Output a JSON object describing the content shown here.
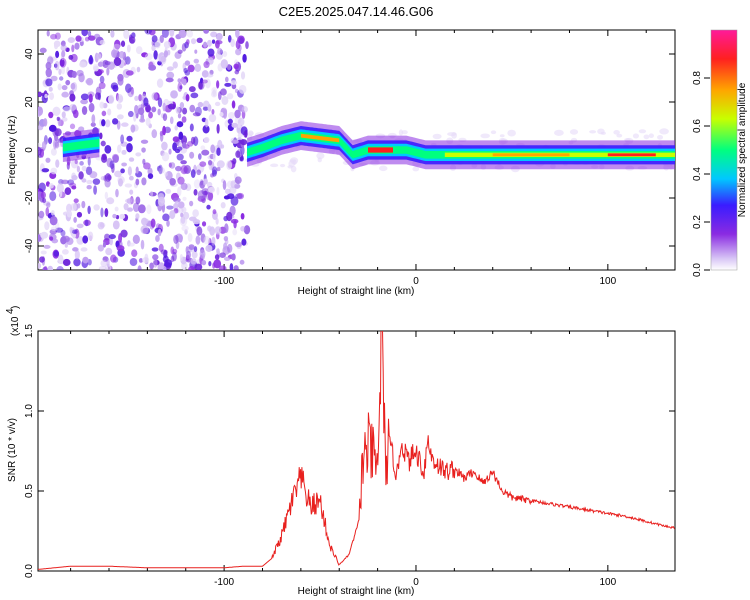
{
  "title": "C2E5.2025.047.14.46.G06",
  "chart_data": [
    {
      "type": "heatmap",
      "xlabel": "Height of straight line (km)",
      "ylabel": "Frequency (Hz)",
      "xlim": [
        -197,
        135
      ],
      "ylim": [
        -50,
        50
      ],
      "x_ticks": [
        -100,
        0,
        100
      ],
      "x_tick_labels": [
        "-100",
        "0",
        "100"
      ],
      "y_ticks": [
        -40,
        -20,
        0,
        20,
        40
      ],
      "y_tick_labels": [
        "-40",
        "-20",
        "0",
        "20",
        "40"
      ],
      "colorbar": {
        "label": "Normalized spectral amplitude",
        "range": [
          0,
          1
        ],
        "ticks": [
          0.0,
          0.2,
          0.4,
          0.6,
          0.8
        ],
        "tick_labels": [
          "0.0",
          "0.2",
          "0.4",
          "0.6",
          "0.8"
        ],
        "colors": [
          "#ffffff",
          "#d6c2f5",
          "#8a2be2",
          "#3a1cff",
          "#00c8ff",
          "#00ff7f",
          "#c8ff00",
          "#ffa500",
          "#ff2020",
          "#ff1a9a"
        ]
      },
      "ridge": [
        {
          "x": -184,
          "y": 1
        },
        {
          "x": -175,
          "y": 2
        },
        {
          "x": -165,
          "y": 3
        },
        {
          "x": -88,
          "y": -1
        },
        {
          "x": -80,
          "y": 1
        },
        {
          "x": -70,
          "y": 4
        },
        {
          "x": -60,
          "y": 6
        },
        {
          "x": -50,
          "y": 5
        },
        {
          "x": -40,
          "y": 4
        },
        {
          "x": -33,
          "y": -2
        },
        {
          "x": -25,
          "y": 0
        },
        {
          "x": -15,
          "y": 0
        },
        {
          "x": -5,
          "y": 0
        },
        {
          "x": 5,
          "y": -2
        },
        {
          "x": 15,
          "y": -2
        },
        {
          "x": 40,
          "y": -2
        },
        {
          "x": 80,
          "y": -2
        },
        {
          "x": 100,
          "y": -2
        },
        {
          "x": 120,
          "y": -2
        },
        {
          "x": 135,
          "y": -2
        }
      ]
    },
    {
      "type": "line",
      "xlabel": "Height of straight line (km)",
      "ylabel": "SNR (10 * v/v)",
      "y_exponent_label": "(x10",
      "y_exponent": "4",
      "xlim": [
        -197,
        135
      ],
      "ylim": [
        0,
        1.5
      ],
      "x_ticks": [
        -100,
        0,
        100
      ],
      "x_tick_labels": [
        "-100",
        "0",
        "100"
      ],
      "y_ticks": [
        0.0,
        0.5,
        1.0,
        1.5
      ],
      "y_tick_labels": [
        "0.0",
        "0.5",
        "1.0",
        "1.5"
      ],
      "line_color": "#e8201e",
      "series": [
        {
          "x": [
            -197,
            -180,
            -160,
            -140,
            -120,
            -100,
            -90,
            -80,
            -75,
            -70,
            -65,
            -60,
            -55,
            -50,
            -45,
            -40,
            -35,
            -30,
            -28,
            -25,
            -22,
            -20,
            -18,
            -16,
            -14,
            -12,
            -10,
            -8,
            -6,
            -4,
            -2,
            0,
            2,
            4,
            6,
            8,
            10,
            12,
            15,
            20,
            25,
            30,
            35,
            40,
            45,
            50,
            60,
            70,
            80,
            90,
            100,
            110,
            120,
            130,
            135
          ],
          "values": [
            0.01,
            0.03,
            0.03,
            0.02,
            0.02,
            0.02,
            0.03,
            0.03,
            0.08,
            0.22,
            0.42,
            0.58,
            0.4,
            0.44,
            0.16,
            0.04,
            0.1,
            0.3,
            0.65,
            0.78,
            0.7,
            0.62,
            1.5,
            0.68,
            0.78,
            0.72,
            0.58,
            0.8,
            0.76,
            0.68,
            0.72,
            0.74,
            0.7,
            0.6,
            0.82,
            0.72,
            0.68,
            0.66,
            0.62,
            0.64,
            0.58,
            0.62,
            0.55,
            0.62,
            0.5,
            0.46,
            0.44,
            0.42,
            0.4,
            0.38,
            0.36,
            0.34,
            0.31,
            0.28,
            0.27
          ]
        }
      ]
    }
  ]
}
